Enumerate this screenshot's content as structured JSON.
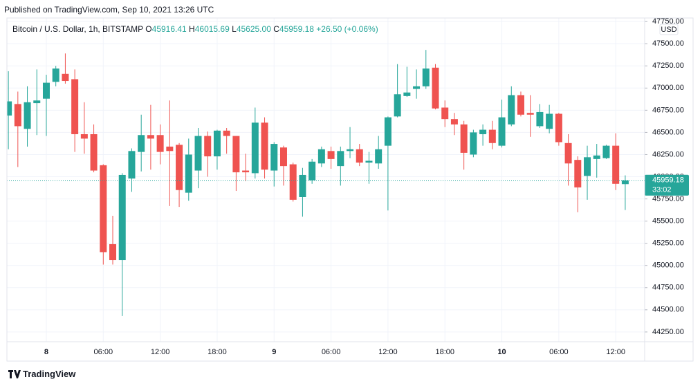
{
  "published": "Published on TradingView.com, Sep 10, 2021 13:26 UTC",
  "footer": "TradingView",
  "chart_data": {
    "type": "candlestick",
    "title": "Bitcoin / U.S. Dollar, 1h, BITSTAMP",
    "legend": {
      "o": "O",
      "open": "45916.41",
      "h": "H",
      "high": "46015.69",
      "l": "L",
      "low": "45625.00",
      "c": "C",
      "close": "45959.18",
      "change": "+26.50 (+0.06%)"
    },
    "currency": "USD",
    "up_color": "#26a69a",
    "down_color": "#ef5350",
    "grid": true,
    "categories": [
      null,
      null,
      null,
      null,
      "8",
      null,
      null,
      null,
      null,
      null,
      "06:00",
      null,
      null,
      null,
      null,
      null,
      "12:00",
      null,
      null,
      null,
      null,
      null,
      "18:00",
      null,
      null,
      null,
      null,
      null,
      "9",
      null,
      null,
      null,
      null,
      null,
      "06:00",
      null,
      null,
      null,
      null,
      null,
      "12:00",
      null,
      null,
      null,
      null,
      null,
      "18:00",
      null,
      null,
      null,
      null,
      null,
      "10",
      null,
      null,
      null,
      null,
      null,
      "06:00",
      null,
      null,
      null,
      null,
      null,
      "12:00",
      null
    ],
    "open": [
      46690,
      46820,
      46540,
      46830,
      46880,
      47070,
      47160,
      47100,
      46480,
      46480,
      46130,
      45240,
      45060,
      45980,
      46280,
      46470,
      46470,
      46340,
      46360,
      45820,
      46070,
      46460,
      46230,
      46520,
      46460,
      46070,
      46040,
      46610,
      46070,
      46330,
      46140,
      45770,
      45960,
      46150,
      46290,
      46120,
      46290,
      46310,
      46160,
      46150,
      46350,
      46680,
      46910,
      46990,
      47020,
      47230,
      46780,
      46650,
      46590,
      46250,
      46480,
      46530,
      46350,
      46590,
      46920,
      46720,
      46570,
      46540,
      46710,
      46380,
      46190,
      46010,
      46200,
      46210,
      46350,
      45916.41
    ],
    "high": [
      47190,
      46960,
      47020,
      47210,
      47150,
      47250,
      47390,
      47210,
      46840,
      46590,
      46140,
      45560,
      46040,
      46320,
      46700,
      46810,
      46590,
      46860,
      46380,
      46430,
      46550,
      46510,
      46530,
      46550,
      46460,
      46260,
      46780,
      46670,
      46390,
      46350,
      46160,
      46100,
      46200,
      46340,
      46340,
      46340,
      46560,
      46370,
      46280,
      46460,
      46680,
      47270,
      47240,
      47210,
      47430,
      47270,
      46860,
      46720,
      46630,
      46530,
      46590,
      46630,
      46870,
      47020,
      46960,
      46920,
      46820,
      46810,
      46720,
      46480,
      46230,
      46350,
      46370,
      46360,
      46490,
      46015.69
    ],
    "low": [
      46310,
      46110,
      46340,
      46470,
      46460,
      47020,
      47050,
      46280,
      46260,
      46050,
      45010,
      45010,
      44430,
      45830,
      46060,
      46080,
      46140,
      45670,
      45660,
      45730,
      45870,
      46000,
      46080,
      46260,
      45840,
      45950,
      45980,
      45980,
      45890,
      45900,
      45720,
      45550,
      45920,
      46110,
      46090,
      45900,
      46210,
      46120,
      45920,
      46090,
      45620,
      46670,
      46900,
      46880,
      46990,
      46760,
      46560,
      46470,
      46080,
      46220,
      46350,
      46310,
      46330,
      46570,
      46680,
      46450,
      46550,
      46490,
      46350,
      45900,
      45600,
      45740,
      45990,
      46200,
      45850,
      45625
    ],
    "close": [
      46850,
      46570,
      46840,
      46860,
      47060,
      47220,
      47080,
      46480,
      46430,
      46070,
      45150,
      45060,
      46020,
      46290,
      46470,
      46430,
      46280,
      46290,
      45850,
      46250,
      46460,
      46230,
      46520,
      46460,
      46050,
      46050,
      46610,
      46080,
      46370,
      46120,
      45740,
      46020,
      46170,
      46310,
      46200,
      46290,
      46310,
      46160,
      46180,
      46310,
      46670,
      46930,
      46950,
      47020,
      47220,
      46770,
      46650,
      46590,
      46270,
      46500,
      46530,
      46380,
      46670,
      46920,
      46700,
      46700,
      46730,
      46710,
      46390,
      46150,
      45880,
      46220,
      46240,
      46350,
      45920,
      45959.18
    ],
    "last_price": {
      "value": 45959.18,
      "label": "45959.18"
    },
    "countdown": "33:02",
    "ylim": [
      44140,
      47790
    ],
    "yticks": [
      {
        "value": 44250,
        "label": "44250.00"
      },
      {
        "value": 44500,
        "label": "44500.00"
      },
      {
        "value": 44750,
        "label": "44750.00"
      },
      {
        "value": 45000,
        "label": "45000.00"
      },
      {
        "value": 45250,
        "label": "45250.00"
      },
      {
        "value": 45500,
        "label": "45500.00"
      },
      {
        "value": 45750,
        "label": "45750.00"
      },
      {
        "value": 46000,
        "label": "46000.00"
      },
      {
        "value": 46250,
        "label": "46250.00"
      },
      {
        "value": 46500,
        "label": "46500.00"
      },
      {
        "value": 46750,
        "label": "46750.00"
      },
      {
        "value": 47000,
        "label": "47000.00"
      },
      {
        "value": 47250,
        "label": "47250.00"
      },
      {
        "value": 47500,
        "label": "47500.00"
      },
      {
        "value": 47750,
        "label": "47750.00"
      }
    ]
  }
}
